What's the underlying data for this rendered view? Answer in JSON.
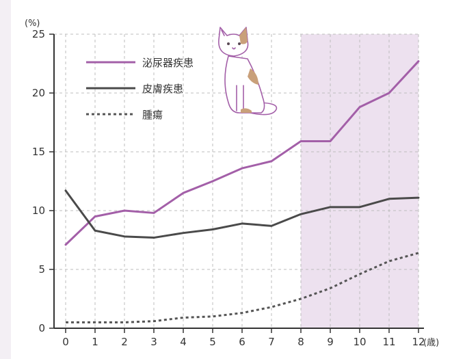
{
  "chart_data": {
    "type": "line",
    "title": "",
    "xlabel": "",
    "ylabel": "",
    "y_unit_label": "(%)",
    "x_unit_label": "(歳)",
    "x": [
      0,
      1,
      2,
      3,
      4,
      5,
      6,
      7,
      8,
      9,
      10,
      11,
      12
    ],
    "x_tick_labels": [
      "0",
      "1",
      "2",
      "3",
      "4",
      "5",
      "6",
      "7",
      "8",
      "9",
      "10",
      "11",
      "12"
    ],
    "y_ticks": [
      0,
      5,
      10,
      15,
      20,
      25
    ],
    "y_tick_labels": [
      "0",
      "5",
      "10",
      "15",
      "20",
      "25"
    ],
    "xlim": [
      0,
      12
    ],
    "ylim": [
      0,
      25
    ],
    "grid": true,
    "legend_position": "top-left",
    "highlight_x_range": [
      8,
      12
    ],
    "series": [
      {
        "name": "泌尿器疾患",
        "style": "solid",
        "color": "#a35fa8",
        "values": [
          7.1,
          9.5,
          10.0,
          9.8,
          11.5,
          12.5,
          13.6,
          14.2,
          15.9,
          15.9,
          18.8,
          20.0,
          22.7
        ]
      },
      {
        "name": "皮膚疾患",
        "style": "solid",
        "color": "#4a4a4a",
        "values": [
          11.7,
          8.3,
          7.8,
          7.7,
          8.1,
          8.4,
          8.9,
          8.7,
          9.7,
          10.3,
          10.3,
          11.0,
          11.1
        ]
      },
      {
        "name": "腫瘍",
        "style": "dotted",
        "color": "#555555",
        "values": [
          0.5,
          0.5,
          0.5,
          0.6,
          0.9,
          1.0,
          1.3,
          1.8,
          2.5,
          3.4,
          4.6,
          5.7,
          6.4
        ]
      }
    ]
  },
  "colors": {
    "highlight": "#ede1ef",
    "grid": "#bdbdbd",
    "axis": "#333333",
    "background": "#ffffff",
    "page_background": "#f3eff4"
  },
  "illustration": {
    "icon": "cat-illustration"
  }
}
